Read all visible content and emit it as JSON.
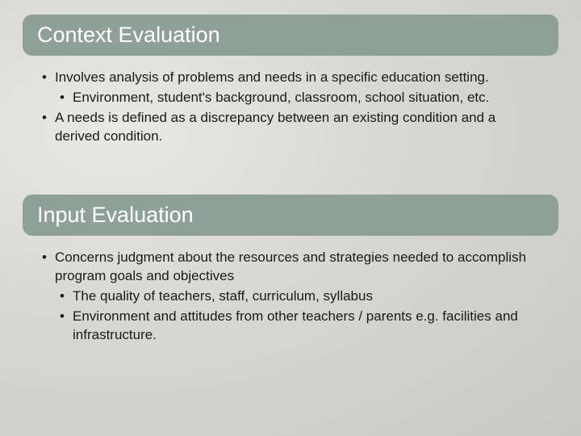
{
  "slide": {
    "background_gradient": [
      "#e8e8e5",
      "#d8d8d5",
      "#c8c8c5"
    ],
    "section1": {
      "header": {
        "text": "Context Evaluation",
        "bg_color": "#8fa099",
        "text_color": "#ffffff",
        "font_size": 27,
        "border_radius": 12
      },
      "bullets": [
        {
          "text": "Involves analysis of problems and needs in a specific education setting.",
          "level": 0
        },
        {
          "text": "Environment, student's background, classroom, school situation, etc.",
          "level": 1
        },
        {
          "text": "A needs is defined as a discrepancy between an existing condition and a derived condition.",
          "level": 0
        }
      ]
    },
    "section2": {
      "header": {
        "text": "Input Evaluation",
        "bg_color": "#8fa099",
        "text_color": "#ffffff",
        "font_size": 27,
        "border_radius": 12
      },
      "bullets": [
        {
          "text": "Concerns judgment about the resources and strategies needed to accomplish program goals and objectives",
          "level": 0
        },
        {
          "text": "The quality of teachers, staff, curriculum, syllabus",
          "level": 1
        },
        {
          "text": "Environment and attitudes from other teachers / parents e.g. facilities and infrastructure.",
          "level": 1
        }
      ]
    },
    "body_text": {
      "font_size": 17,
      "color": "#1a1a1a",
      "line_height": 1.35
    }
  }
}
